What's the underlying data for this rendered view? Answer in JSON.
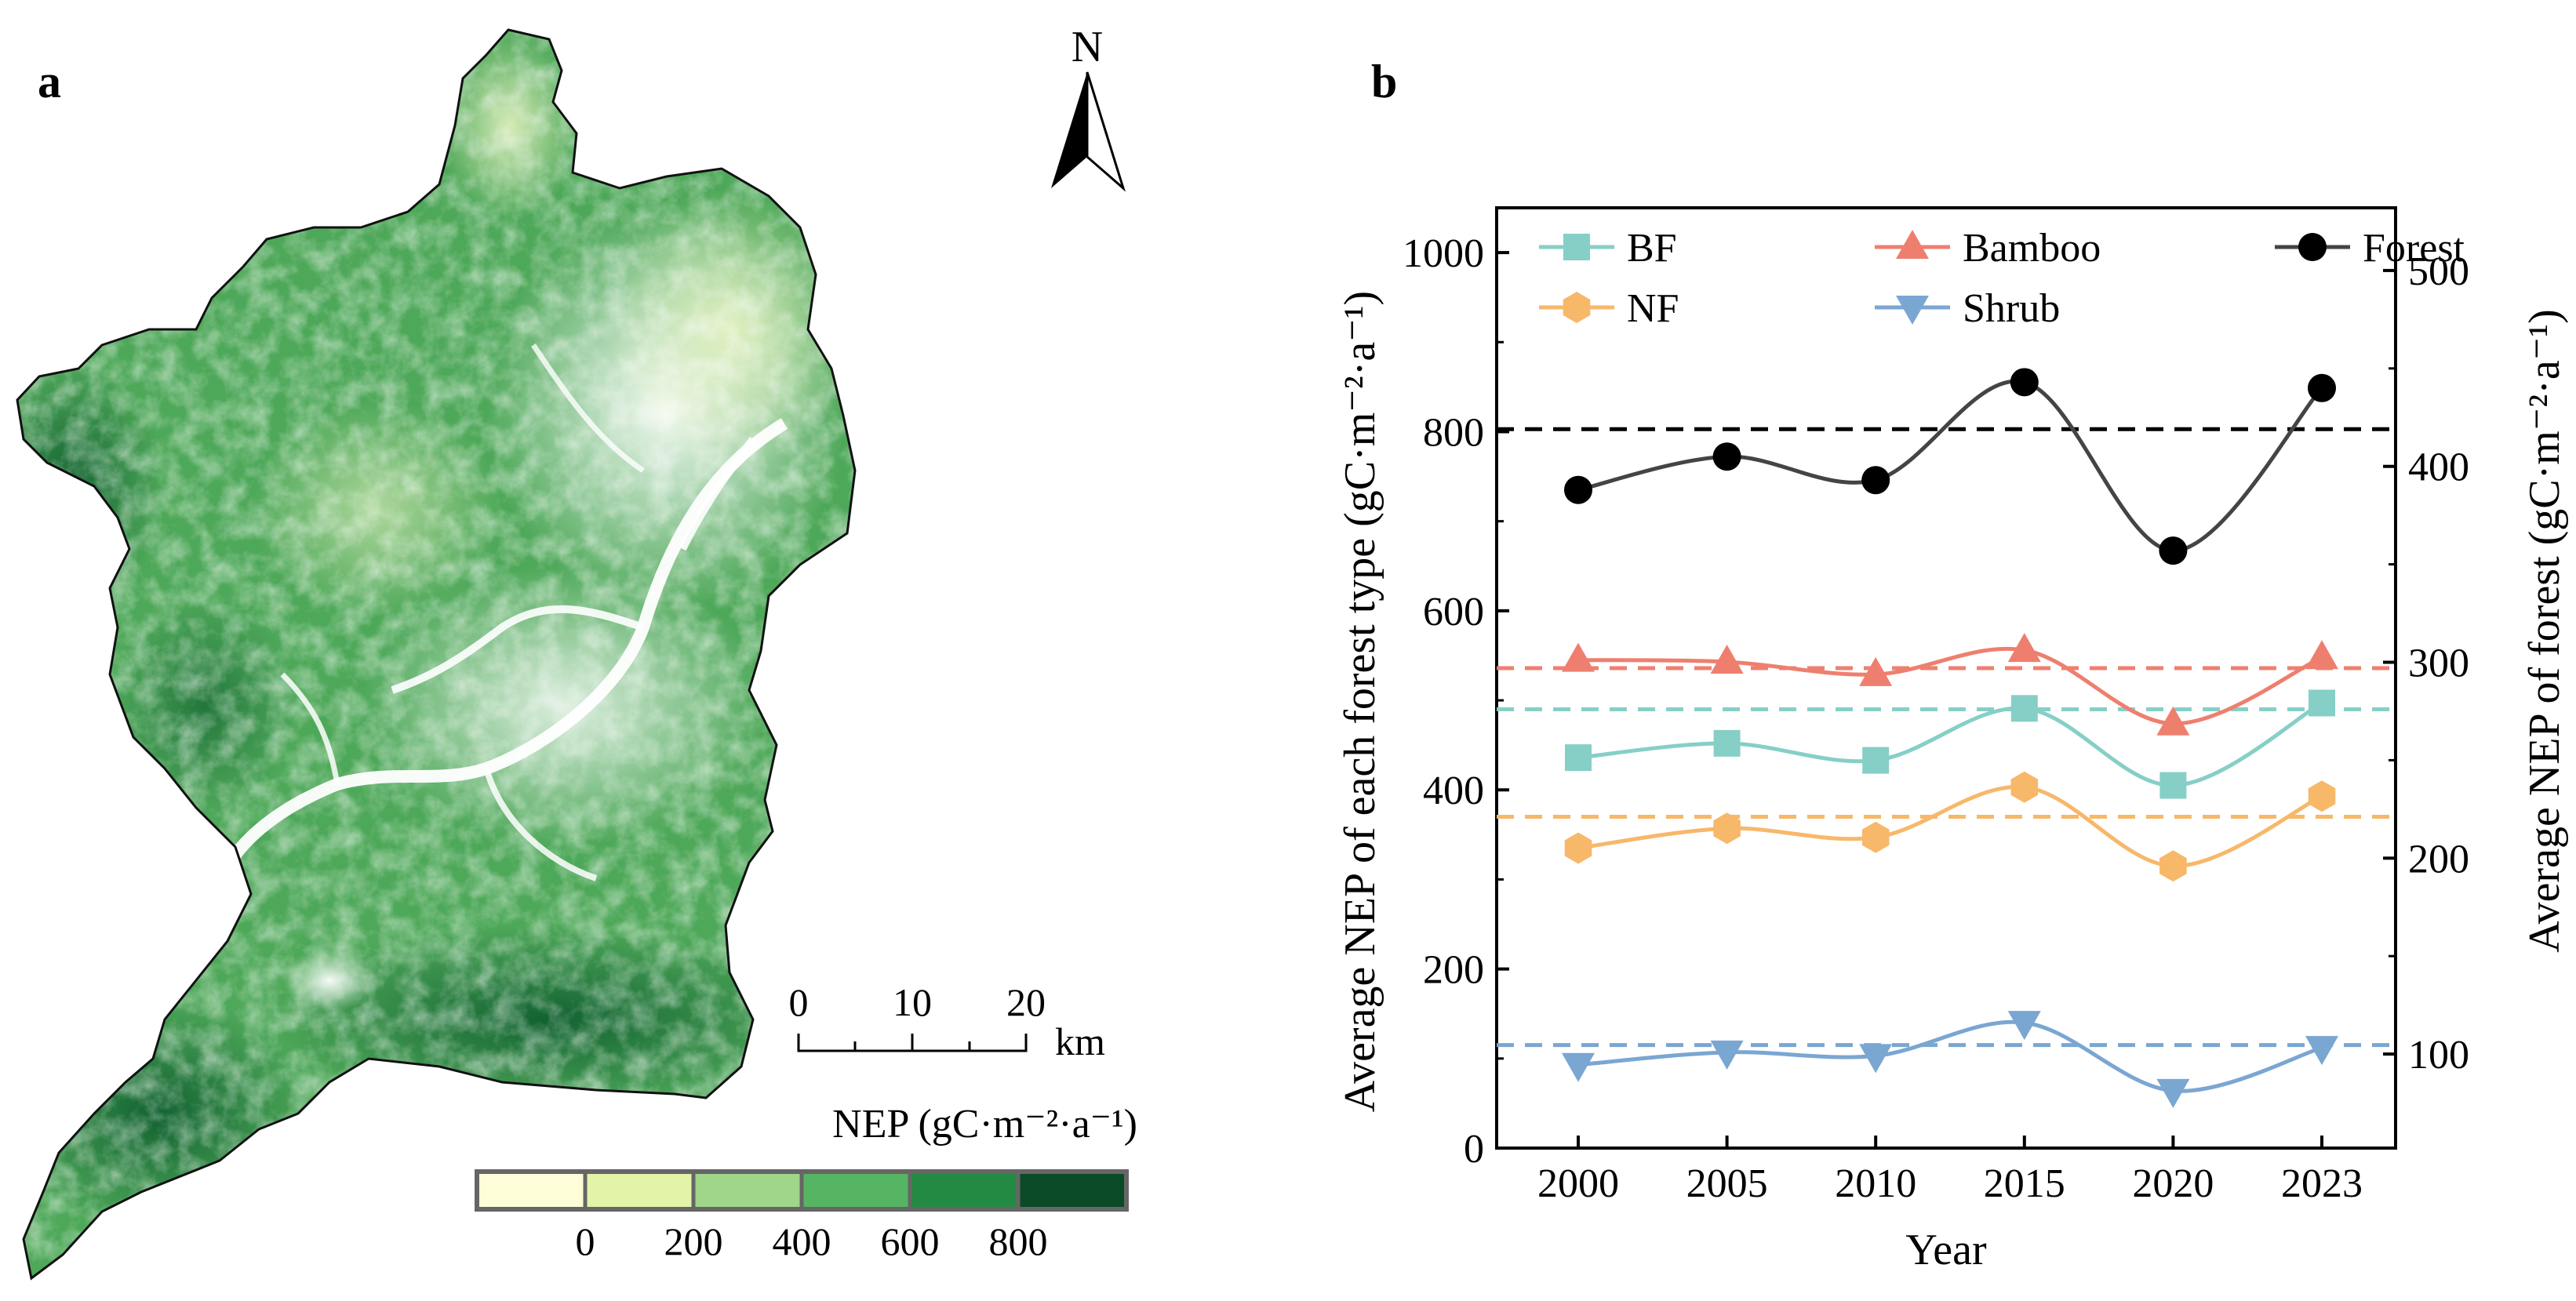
{
  "panel_labels": {
    "a": "a",
    "b": "b"
  },
  "map": {
    "north_label": "N",
    "scale_ticks": [
      "0",
      "10",
      "20"
    ],
    "scale_unit": "km",
    "legend_title": "NEP (gC·m⁻²·a⁻¹)",
    "legend_colors": [
      "#fdfdd8",
      "#e3f3a8",
      "#9fd68a",
      "#56b562",
      "#238a44",
      "#0a4a26"
    ],
    "legend_ticks": [
      "0",
      "200",
      "400",
      "600",
      "800"
    ]
  },
  "chart_data": {
    "type": "line",
    "x": [
      2000,
      2005,
      2010,
      2015,
      2020,
      2023
    ],
    "x_tick_labels": [
      "2000",
      "2005",
      "2010",
      "2015",
      "2020",
      "2023"
    ],
    "xlabel": "Year",
    "ylabel_left": "Average NEP of each forest type (gC·m⁻²·a⁻¹)",
    "ylabel_right": "Average NEP of forest (gC·m⁻²·a⁻¹)",
    "ylim_left": [
      0,
      1050
    ],
    "ylim_right": [
      52,
      532
    ],
    "yticks_left": [
      "0",
      "200",
      "400",
      "600",
      "800",
      "1000"
    ],
    "yticks_right": [
      "100",
      "200",
      "300",
      "400",
      "500"
    ],
    "series": [
      {
        "name": "BF",
        "axis": "left",
        "marker": "square",
        "color": "#86cfc7",
        "values": [
          436,
          452,
          433,
          491,
          405,
          497
        ],
        "mean": 490
      },
      {
        "name": "Bamboo",
        "axis": "left",
        "marker": "triangle-up",
        "color": "#ee7f6f",
        "values": [
          545,
          543,
          529,
          556,
          474,
          548
        ],
        "mean": 536
      },
      {
        "name": "Forest",
        "axis": "right",
        "marker": "circle",
        "color": "#000000",
        "line_color": "#444444",
        "values": [
          388,
          405,
          393,
          443,
          357,
          440
        ],
        "mean": 419
      },
      {
        "name": "NF",
        "axis": "left",
        "marker": "hexagon",
        "color": "#f7b86a",
        "values": [
          335,
          357,
          347,
          403,
          315,
          393
        ],
        "mean": 370
      },
      {
        "name": "Shrub",
        "axis": "left",
        "marker": "triangle-down",
        "color": "#7aa6d2",
        "values": [
          93,
          107,
          103,
          140,
          64,
          112
        ],
        "mean": 115
      }
    ],
    "legend_labels": [
      "BF",
      "Bamboo",
      "Forest",
      "NF",
      "Shrub"
    ]
  }
}
